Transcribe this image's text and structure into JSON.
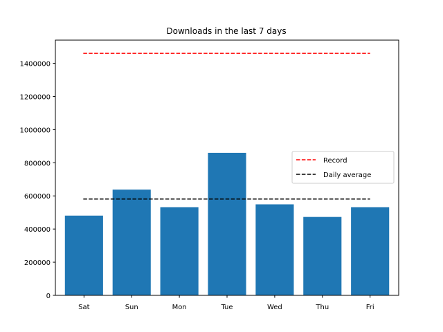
{
  "chart_data": {
    "type": "bar",
    "title": "Downloads in the last 7 days",
    "xlabel": "",
    "ylabel": "",
    "categories": [
      "Sat",
      "Sun",
      "Mon",
      "Tue",
      "Wed",
      "Thu",
      "Fri"
    ],
    "values": [
      481000,
      638000,
      532000,
      860000,
      549000,
      473000,
      532000
    ],
    "ylim": [
      0,
      1540000
    ],
    "yticks": [
      0,
      200000,
      400000,
      600000,
      800000,
      1000000,
      1200000,
      1400000
    ],
    "ytick_labels": [
      "0",
      "200000",
      "400000",
      "600000",
      "800000",
      "1000000",
      "1200000",
      "1400000"
    ],
    "bar_color": "#1f77b4",
    "reference_lines": [
      {
        "name": "Record",
        "value": 1460000,
        "color": "#ff0000",
        "style": "dashed"
      },
      {
        "name": "Daily average",
        "value": 581000,
        "color": "#000000",
        "style": "dashed"
      }
    ],
    "legend": {
      "placement": "center-right",
      "entries": [
        "Record",
        "Daily average"
      ]
    },
    "grid": false
  }
}
